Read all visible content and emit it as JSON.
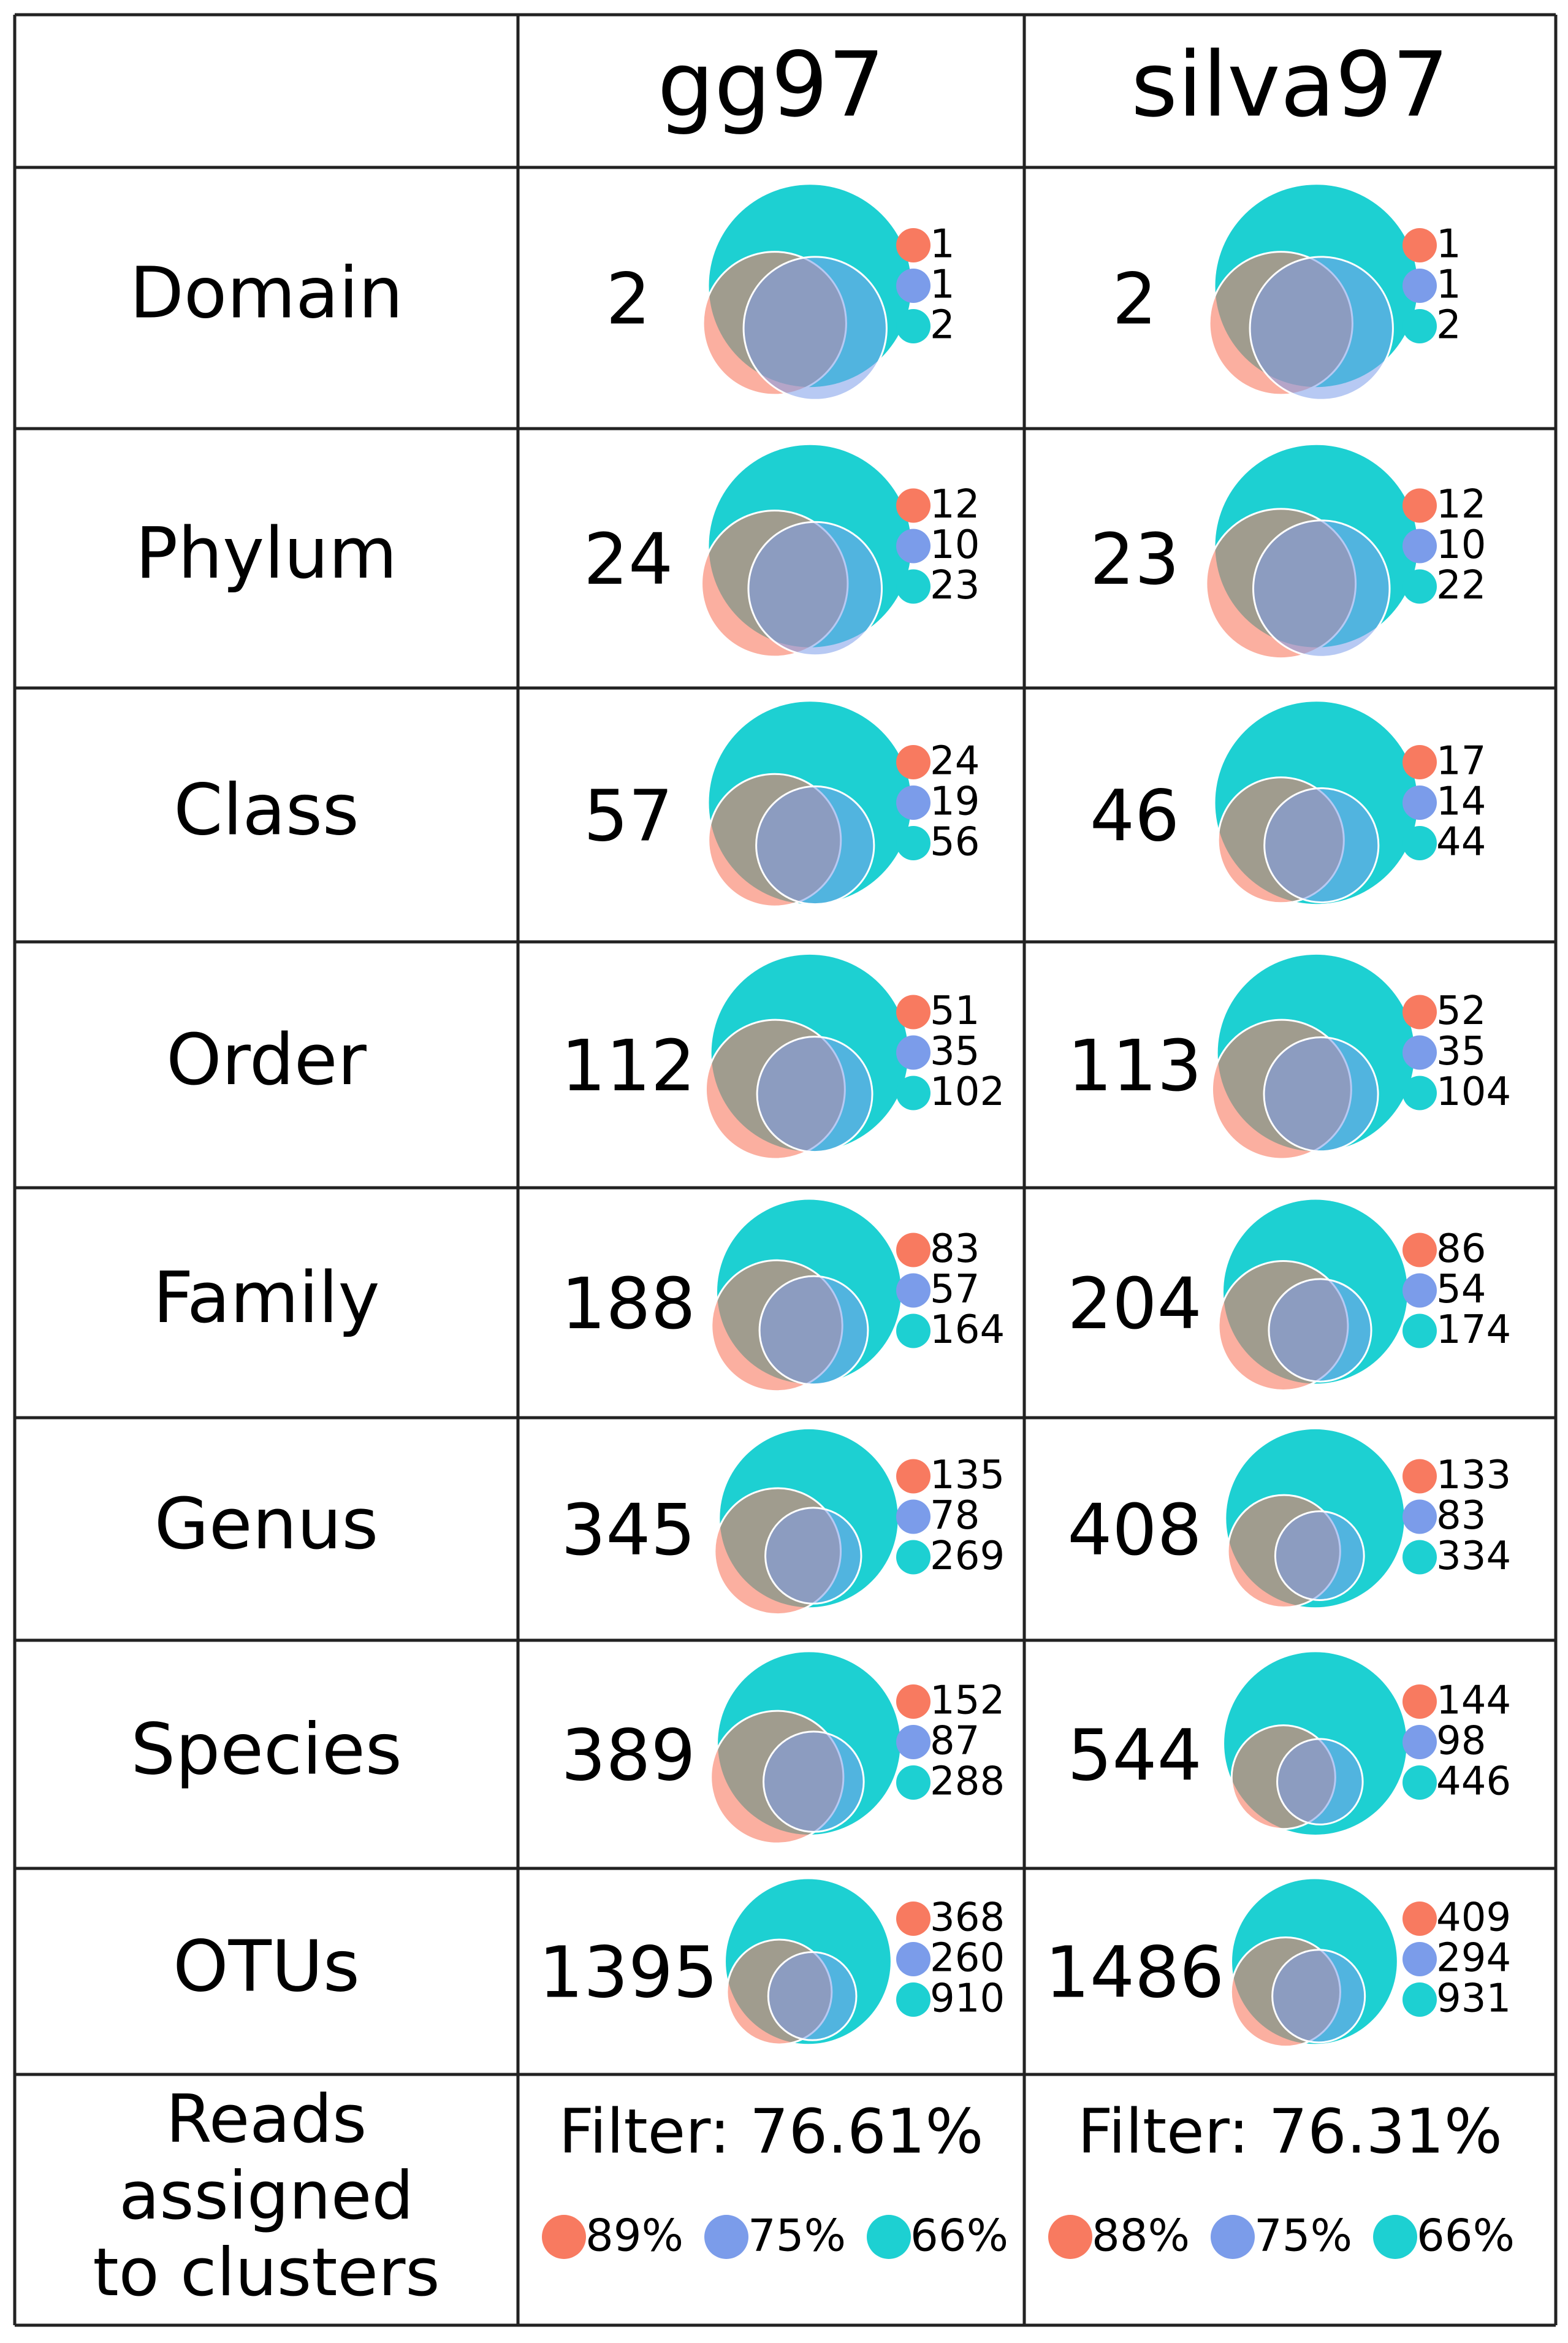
{
  "colors": [
    "#f87a60",
    "#7b9cea",
    "#1dd0d2"
  ],
  "columns": [
    "gg97",
    "silva97"
  ],
  "rows": [
    {
      "label": "Domain",
      "cells": [
        {
          "total": 2,
          "counts": [
            1,
            1,
            2
          ]
        },
        {
          "total": 2,
          "counts": [
            1,
            1,
            2
          ]
        }
      ]
    },
    {
      "label": "Phylum",
      "cells": [
        {
          "total": 24,
          "counts": [
            12,
            10,
            23
          ]
        },
        {
          "total": 23,
          "counts": [
            12,
            10,
            22
          ]
        }
      ]
    },
    {
      "label": "Class",
      "cells": [
        {
          "total": 57,
          "counts": [
            24,
            19,
            56
          ]
        },
        {
          "total": 46,
          "counts": [
            17,
            14,
            44
          ]
        }
      ]
    },
    {
      "label": "Order",
      "cells": [
        {
          "total": 112,
          "counts": [
            51,
            35,
            102
          ]
        },
        {
          "total": 113,
          "counts": [
            52,
            35,
            104
          ]
        }
      ]
    },
    {
      "label": "Family",
      "cells": [
        {
          "total": 188,
          "counts": [
            83,
            57,
            164
          ]
        },
        {
          "total": 204,
          "counts": [
            86,
            54,
            174
          ]
        }
      ]
    },
    {
      "label": "Genus",
      "cells": [
        {
          "total": 345,
          "counts": [
            135,
            78,
            269
          ]
        },
        {
          "total": 408,
          "counts": [
            133,
            83,
            334
          ]
        }
      ]
    },
    {
      "label": "Species",
      "cells": [
        {
          "total": 389,
          "counts": [
            152,
            87,
            288
          ]
        },
        {
          "total": 544,
          "counts": [
            144,
            98,
            446
          ]
        }
      ]
    },
    {
      "label": "OTUs",
      "cells": [
        {
          "total": 1395,
          "counts": [
            368,
            260,
            910
          ]
        },
        {
          "total": 1486,
          "counts": [
            409,
            294,
            931
          ]
        }
      ]
    }
  ],
  "reads": {
    "label": [
      "Reads",
      "assigned",
      "to clusters"
    ],
    "cells": [
      {
        "filter": "Filter: 76.61%",
        "percents": [
          "89%",
          "75%",
          "66%"
        ]
      },
      {
        "filter": "Filter: 76.31%",
        "percents": [
          "88%",
          "75%",
          "66%"
        ]
      }
    ]
  }
}
